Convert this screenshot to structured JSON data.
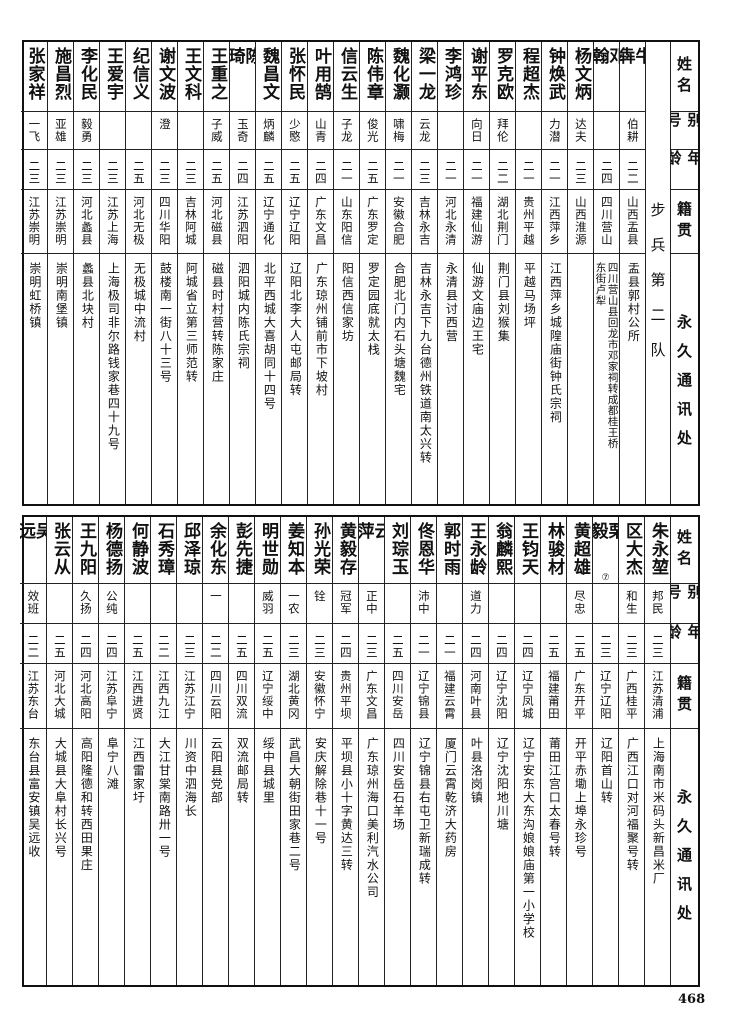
{
  "page_number": "468",
  "headers": {
    "name": "姓名",
    "alias": "别号",
    "age": "年龄",
    "native": "籍贯",
    "address": "永久通讯处"
  },
  "section_label": "步兵第二队",
  "tables": [
    {
      "rows": [
        {
          "name": "牛犇",
          "alias": "伯耕",
          "age": "二二",
          "native": "山西盂县",
          "address": "盂县郭村公所"
        },
        {
          "name": "邓翰",
          "alias": "",
          "age": "二四",
          "native": "四川营山",
          "address": "四川营山县回龙市邓家祠转成都桂王桥\n东街卢犁"
        },
        {
          "name": "杨文炳",
          "alias": "达夫",
          "age": "二三",
          "native": "山西淮源",
          "address": ""
        },
        {
          "name": "钟焕武",
          "alias": "力潜",
          "age": "二一",
          "native": "江西萍乡",
          "address": "江西萍乡城隍庙街钟氏宗祠"
        },
        {
          "name": "程超杰",
          "alias": "",
          "age": "二一",
          "native": "贵州平越",
          "address": "平越马场坪"
        },
        {
          "name": "罗克欧",
          "alias": "拜伦",
          "age": "二二",
          "native": "湖北荆门",
          "address": "荆门县刘猴集"
        },
        {
          "name": "谢平东",
          "alias": "向日",
          "age": "二一",
          "native": "福建仙游",
          "address": "仙游文庙边王宅"
        },
        {
          "name": "李鸿珍",
          "alias": "",
          "age": "二一",
          "native": "河北永清",
          "address": "永清县讨西营"
        },
        {
          "name": "梁一龙",
          "alias": "云龙",
          "age": "二三",
          "native": "吉林永吉",
          "address": "吉林永吉下九台德州铁道南太兴转"
        },
        {
          "name": "魏化灏",
          "alias": "啸梅",
          "age": "二一",
          "native": "安徽合肥",
          "address": "合肥北门内石头塘魏宅"
        },
        {
          "name": "陈伟章",
          "alias": "俊光",
          "age": "二五",
          "native": "广东罗定",
          "address": "罗定园底就太栈"
        },
        {
          "name": "信云生",
          "alias": "子龙",
          "age": "二一",
          "native": "山东阳信",
          "address": "阳信西信家坊"
        },
        {
          "name": "叶用鹄",
          "alias": "山青",
          "age": "二四",
          "native": "广东文昌",
          "address": "广东琼州铺前市下坡村"
        },
        {
          "name": "张怀民",
          "alias": "少愍",
          "age": "二五",
          "native": "辽宁辽阳",
          "address": "辽阳北李大人屯邮局转"
        },
        {
          "name": "魏昌文",
          "alias": "炳麟",
          "age": "二五",
          "native": "辽宁通化",
          "address": "北平西城大喜胡同十四号"
        },
        {
          "name": "陈琦",
          "alias": "玉奇",
          "age": "二四",
          "native": "江苏泗阳",
          "address": "泗阳城内陈氏宗祠"
        },
        {
          "name": "王重之",
          "alias": "子威",
          "age": "二五",
          "native": "河北磁县",
          "address": "磁县时村营转陈家庄"
        },
        {
          "name": "王文科",
          "alias": "",
          "age": "二三",
          "native": "吉林阿城",
          "address": "阿城省立第三师范转"
        },
        {
          "name": "谢文波",
          "alias": "澄",
          "age": "二三",
          "native": "四川华阳",
          "address": "鼓楼南一街八十三号"
        },
        {
          "name": "纪信义",
          "alias": "",
          "age": "二五",
          "native": "河北无极",
          "address": "无极城中流村"
        },
        {
          "name": "王爱宇",
          "alias": "",
          "age": "二三",
          "native": "江苏上海",
          "address": "上海极司非尔路钱家巷四十九号"
        },
        {
          "name": "李化民",
          "alias": "毅勇",
          "age": "二三",
          "native": "河北蠡县",
          "address": "蠡县北块村"
        },
        {
          "name": "施昌烈",
          "alias": "亚雄",
          "age": "二三",
          "native": "江苏崇明",
          "address": "崇明南堡镇"
        },
        {
          "name": "张家祥",
          "alias": "一飞",
          "age": "二三",
          "native": "江苏崇明",
          "address": "崇明虹桥镇"
        }
      ]
    },
    {
      "rows": [
        {
          "name": "朱永堃",
          "alias": "邦民",
          "age": "二三",
          "native": "江苏清浦",
          "address": "上海南市米码头新昌米厂"
        },
        {
          "name": "区大杰",
          "alias": "和生",
          "age": "二三",
          "native": "广西桂平",
          "address": "广西江口对河福聚号转"
        },
        {
          "name": "栗毅",
          "note": "⑦",
          "alias": "",
          "age": "二三",
          "native": "辽宁辽阳",
          "address": "辽阳首山转"
        },
        {
          "name": "黄超雄",
          "alias": "尽忠",
          "age": "二五",
          "native": "广东开平",
          "address": "开平赤墈上埠永珍号"
        },
        {
          "name": "林骏材",
          "alias": "",
          "age": "二五",
          "native": "福建莆田",
          "address": "莆田江宫口太春号转"
        },
        {
          "name": "王钧天",
          "alias": "",
          "age": "二四",
          "native": "辽宁凤城",
          "address": "辽宁安东大东沟娘娘庙第一小学校"
        },
        {
          "name": "翁麟熙",
          "alias": "",
          "age": "二四",
          "native": "辽宁沈阳",
          "address": "辽宁沈阳地川塘"
        },
        {
          "name": "王永龄",
          "alias": "道力",
          "age": "二四",
          "native": "河南叶县",
          "address": "叶县洛岗镇"
        },
        {
          "name": "郭时雨",
          "alias": "",
          "age": "二一",
          "native": "福建云霄",
          "address": "厦门云霄乾济大药房"
        },
        {
          "name": "佟恩华",
          "alias": "沛中",
          "age": "二一",
          "native": "辽宁锦县",
          "address": "辽宁锦县右屯卫新瑞成转"
        },
        {
          "name": "刘琮玉",
          "alias": "",
          "age": "二五",
          "native": "四川安岳",
          "address": "四川安岳石羊场"
        },
        {
          "name": "云萍",
          "alias": "正中",
          "age": "二三",
          "native": "广东文昌",
          "address": "广东琼州海口美利汽水公司"
        },
        {
          "name": "黄毅存",
          "alias": "冠军",
          "age": "二四",
          "native": "贵州平坝",
          "address": "平坝县小十字黄达三转"
        },
        {
          "name": "孙光荣",
          "alias": "铨",
          "age": "二三",
          "native": "安徽怀宁",
          "address": "安庆解除巷十一号"
        },
        {
          "name": "姜知本",
          "alias": "一农",
          "age": "二三",
          "native": "湖北黄冈",
          "address": "武昌大朝街田家巷二号"
        },
        {
          "name": "明世勋",
          "alias": "威羽",
          "age": "二五",
          "native": "辽宁绥中",
          "address": "绥中县城里"
        },
        {
          "name": "彭先捷",
          "alias": "",
          "age": "二五",
          "native": "四川双流",
          "address": "双流邮局转"
        },
        {
          "name": "余化东",
          "alias": "一",
          "age": "二二",
          "native": "四川云阳",
          "address": "云阳县党部"
        },
        {
          "name": "邱泽琼",
          "alias": "",
          "age": "二三",
          "native": "江苏江宁",
          "address": "川资中泗海长"
        },
        {
          "name": "石秀璋",
          "alias": "",
          "age": "二二",
          "native": "江西九江",
          "address": "大江甘棠南路卅一号"
        },
        {
          "name": "何静波",
          "alias": "",
          "age": "二五",
          "native": "江西进贤",
          "address": "江西雷家圩"
        },
        {
          "name": "杨德扬",
          "alias": "公纯",
          "age": "二四",
          "native": "江苏阜宁",
          "address": "阜宁八滩"
        },
        {
          "name": "王九阳",
          "alias": "久扬",
          "age": "二四",
          "native": "河北高阳",
          "address": "高阳隆德和转西田果庄"
        },
        {
          "name": "张云从",
          "alias": "",
          "age": "二五",
          "native": "河北大城",
          "address": "大城县大阜村长兴号"
        },
        {
          "name": "吴远",
          "alias": "效班",
          "age": "二二",
          "native": "江苏东台",
          "address": "东台县富安镇吴远收"
        }
      ]
    }
  ]
}
